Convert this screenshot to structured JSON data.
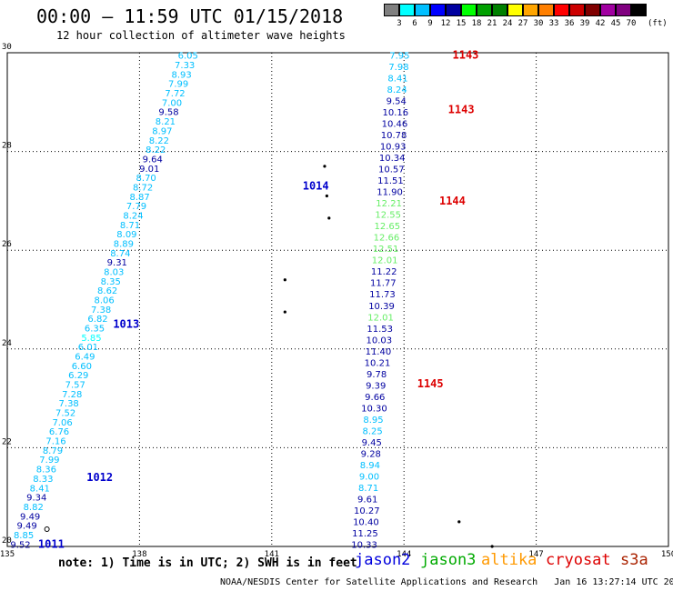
{
  "header": {
    "title": "00:00 – 11:59 UTC 01/15/2018",
    "subtitle": "12 hour collection of altimeter wave heights"
  },
  "legend": {
    "unit": "(ft)",
    "colors": [
      "#808080",
      "#00ffff",
      "#00bfff",
      "#0000ff",
      "#0000a0",
      "#00ff00",
      "#00a000",
      "#008000",
      "#ffff00",
      "#ffa500",
      "#ff7f00",
      "#ff0000",
      "#cc0000",
      "#800000",
      "#a000a0",
      "#800080",
      "#000000"
    ],
    "labels": [
      "3",
      "6",
      "9",
      "12",
      "15",
      "18",
      "21",
      "24",
      "27",
      "30",
      "33",
      "36",
      "39",
      "42",
      "45",
      "70"
    ]
  },
  "map": {
    "lon_ticks": [
      "135",
      "138",
      "141",
      "144",
      "147",
      "150"
    ],
    "lat_ticks": [
      "20",
      "22",
      "24",
      "26",
      "28",
      "30"
    ],
    "lon_range": [
      135,
      150
    ],
    "lat_range": [
      20,
      30
    ]
  },
  "track_labels": [
    {
      "text": "1014",
      "lon": 141.7,
      "lat": 27.3,
      "color": "#0000cc"
    },
    {
      "text": "1013",
      "lon": 137.4,
      "lat": 24.5,
      "color": "#0000cc"
    },
    {
      "text": "1012",
      "lon": 136.8,
      "lat": 21.4,
      "color": "#0000cc"
    },
    {
      "text": "1011",
      "lon": 135.7,
      "lat": 20.05,
      "color": "#0000cc"
    },
    {
      "text": "1143",
      "lon": 145.1,
      "lat": 29.95,
      "color": "#dd0000"
    },
    {
      "text": "1143",
      "lon": 145.0,
      "lat": 28.85,
      "color": "#dd0000"
    },
    {
      "text": "1144",
      "lon": 144.8,
      "lat": 27.0,
      "color": "#dd0000"
    },
    {
      "text": "1145",
      "lon": 144.3,
      "lat": 23.3,
      "color": "#dd0000"
    }
  ],
  "tracks": [
    {
      "name": "jason2 west",
      "start_lon": 139.1,
      "start_lat": 29.95,
      "end_lon": 135.3,
      "end_lat": 20.05,
      "points": [
        {
          "v": "6.05",
          "c": "#00bfff"
        },
        {
          "v": "7.33",
          "c": "#00bfff"
        },
        {
          "v": "8.93",
          "c": "#00bfff"
        },
        {
          "v": "7.99",
          "c": "#00bfff"
        },
        {
          "v": "7.72",
          "c": "#00bfff"
        },
        {
          "v": "7.00",
          "c": "#00bfff"
        },
        {
          "v": "9.58",
          "c": "#0000a0"
        },
        {
          "v": "8.21",
          "c": "#00bfff"
        },
        {
          "v": "8.97",
          "c": "#00bfff"
        },
        {
          "v": "8.22",
          "c": "#00bfff"
        },
        {
          "v": "8.22",
          "c": "#00bfff"
        },
        {
          "v": "9.64",
          "c": "#0000a0"
        },
        {
          "v": "9.01",
          "c": "#0000a0"
        },
        {
          "v": "8.70",
          "c": "#00bfff"
        },
        {
          "v": "8.72",
          "c": "#00bfff"
        },
        {
          "v": "8.87",
          "c": "#00bfff"
        },
        {
          "v": "7.79",
          "c": "#00bfff"
        },
        {
          "v": "8.24",
          "c": "#00bfff"
        },
        {
          "v": "8.71",
          "c": "#00bfff"
        },
        {
          "v": "8.09",
          "c": "#00bfff"
        },
        {
          "v": "8.89",
          "c": "#00bfff"
        },
        {
          "v": "8.74",
          "c": "#00bfff"
        },
        {
          "v": "9.31",
          "c": "#0000a0"
        },
        {
          "v": "8.03",
          "c": "#00bfff"
        },
        {
          "v": "8.35",
          "c": "#00bfff"
        },
        {
          "v": "8.62",
          "c": "#00bfff"
        },
        {
          "v": "8.06",
          "c": "#00bfff"
        },
        {
          "v": "7.38",
          "c": "#00bfff"
        },
        {
          "v": "6.82",
          "c": "#00bfff"
        },
        {
          "v": "6.35",
          "c": "#00bfff"
        },
        {
          "v": "5.85",
          "c": "#00ffff"
        },
        {
          "v": "6.01",
          "c": "#00bfff"
        },
        {
          "v": "6.49",
          "c": "#00bfff"
        },
        {
          "v": "6.60",
          "c": "#00bfff"
        },
        {
          "v": "6.29",
          "c": "#00bfff"
        },
        {
          "v": "7.57",
          "c": "#00bfff"
        },
        {
          "v": "7.28",
          "c": "#00bfff"
        },
        {
          "v": "7.38",
          "c": "#00bfff"
        },
        {
          "v": "7.52",
          "c": "#00bfff"
        },
        {
          "v": "7.06",
          "c": "#00bfff"
        },
        {
          "v": "6.76",
          "c": "#00bfff"
        },
        {
          "v": "7.16",
          "c": "#00bfff"
        },
        {
          "v": "8.79",
          "c": "#00bfff"
        },
        {
          "v": "7.99",
          "c": "#00bfff"
        },
        {
          "v": "8.36",
          "c": "#00bfff"
        },
        {
          "v": "8.33",
          "c": "#00bfff"
        },
        {
          "v": "8.41",
          "c": "#00bfff"
        },
        {
          "v": "9.34",
          "c": "#0000a0"
        },
        {
          "v": "8.82",
          "c": "#00bfff"
        },
        {
          "v": "9.49",
          "c": "#0000a0"
        },
        {
          "v": "9.49",
          "c": "#0000a0"
        },
        {
          "v": "8.85",
          "c": "#00bfff"
        },
        {
          "v": "9.52",
          "c": "#0000a0"
        }
      ]
    },
    {
      "name": "jason2 east",
      "start_lon": 143.9,
      "start_lat": 29.95,
      "end_lon": 143.1,
      "end_lat": 20.05,
      "points": [
        {
          "v": "7.95",
          "c": "#00bfff"
        },
        {
          "v": "7.98",
          "c": "#00bfff"
        },
        {
          "v": "8.41",
          "c": "#00bfff"
        },
        {
          "v": "8.24",
          "c": "#00bfff"
        },
        {
          "v": "9.54",
          "c": "#0000a0"
        },
        {
          "v": "10.16",
          "c": "#0000a0"
        },
        {
          "v": "10.46",
          "c": "#0000a0"
        },
        {
          "v": "10.78",
          "c": "#0000a0"
        },
        {
          "v": "10.93",
          "c": "#0000a0"
        },
        {
          "v": "10.34",
          "c": "#0000a0"
        },
        {
          "v": "10.57",
          "c": "#0000a0"
        },
        {
          "v": "11.51",
          "c": "#0000a0"
        },
        {
          "v": "11.90",
          "c": "#0000a0"
        },
        {
          "v": "12.21",
          "c": "#66ee66"
        },
        {
          "v": "12.55",
          "c": "#66ee66"
        },
        {
          "v": "12.65",
          "c": "#66ee66"
        },
        {
          "v": "12.66",
          "c": "#66ee66"
        },
        {
          "v": "12.51",
          "c": "#66ee66"
        },
        {
          "v": "12.01",
          "c": "#66ee66"
        },
        {
          "v": "11.22",
          "c": "#0000a0"
        },
        {
          "v": "11.77",
          "c": "#0000a0"
        },
        {
          "v": "11.73",
          "c": "#0000a0"
        },
        {
          "v": "10.39",
          "c": "#0000a0"
        },
        {
          "v": "12.01",
          "c": "#66ee66"
        },
        {
          "v": "11.53",
          "c": "#0000a0"
        },
        {
          "v": "10.03",
          "c": "#0000a0"
        },
        {
          "v": "11.40",
          "c": "#0000a0"
        },
        {
          "v": "10.21",
          "c": "#0000a0"
        },
        {
          "v": "9.78",
          "c": "#0000a0"
        },
        {
          "v": "9.39",
          "c": "#0000a0"
        },
        {
          "v": "9.66",
          "c": "#0000a0"
        },
        {
          "v": "10.30",
          "c": "#0000a0"
        },
        {
          "v": "8.95",
          "c": "#00bfff"
        },
        {
          "v": "8.25",
          "c": "#00bfff"
        },
        {
          "v": "9.45",
          "c": "#0000a0"
        },
        {
          "v": "9.28",
          "c": "#0000a0"
        },
        {
          "v": "8.94",
          "c": "#00bfff"
        },
        {
          "v": "9.00",
          "c": "#00bfff"
        },
        {
          "v": "8.71",
          "c": "#00bfff"
        },
        {
          "v": "9.61",
          "c": "#0000a0"
        },
        {
          "v": "10.27",
          "c": "#0000a0"
        },
        {
          "v": "10.40",
          "c": "#0000a0"
        },
        {
          "v": "11.25",
          "c": "#0000a0"
        },
        {
          "v": "10.33",
          "c": "#0000a0"
        }
      ]
    }
  ],
  "islands": [
    {
      "lon": 142.2,
      "lat": 27.7
    },
    {
      "lon": 142.25,
      "lat": 27.1
    },
    {
      "lon": 142.3,
      "lat": 26.65
    },
    {
      "lon": 141.3,
      "lat": 25.4
    },
    {
      "lon": 141.3,
      "lat": 24.75
    },
    {
      "lon": 145.25,
      "lat": 20.5
    },
    {
      "lon": 146.0,
      "lat": 20.0
    }
  ],
  "ring_markers": [
    {
      "lon": 135.9,
      "lat": 20.35
    }
  ],
  "footer": {
    "note": "note: 1) Time is in UTC; 2) SWH is in feet",
    "satellites": [
      {
        "name": "jason2",
        "color": "#0000dd"
      },
      {
        "name": "jason3",
        "color": "#00aa00"
      },
      {
        "name": "altika",
        "color": "#ff9900"
      },
      {
        "name": "cryosat",
        "color": "#dd0000"
      },
      {
        "name": "s3a",
        "color": "#aa2200"
      }
    ],
    "credit": "NOAA/NESDIS Center for Satellite Applications and Research   Jan 16 13:27:14 UTC 2018"
  }
}
